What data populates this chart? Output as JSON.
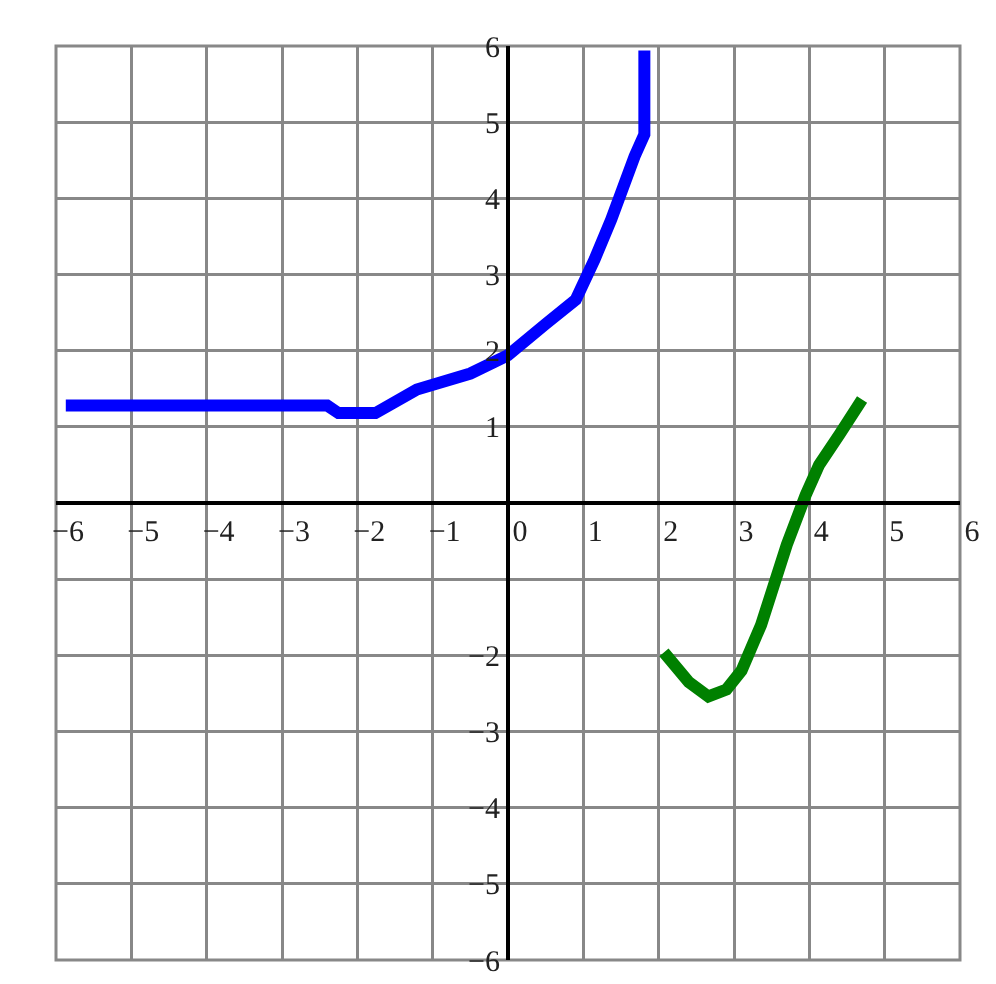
{
  "chart_data": {
    "type": "line",
    "grid": true,
    "marker": "none",
    "line_style": "solid",
    "xlim": [
      -6,
      6
    ],
    "ylim": [
      -6,
      6
    ],
    "xticks": [
      -6,
      -5,
      -4,
      -3,
      -2,
      -1,
      0,
      1,
      2,
      3,
      4,
      5,
      6
    ],
    "yticks": [
      -6,
      -5,
      -4,
      -3,
      -2,
      {
        "value": -1,
        "label": null
      },
      {
        "value": 0,
        "label": null
      },
      1,
      2,
      3,
      4,
      5,
      6
    ],
    "series": [
      {
        "color": "#0000ff",
        "x": [
          -5.87,
          -4,
          -3,
          -2.4,
          -2.25,
          -1.76,
          -1.21,
          -0.5,
          0,
          0.5,
          0.9,
          1.15,
          1.37,
          1.68,
          1.81,
          1.81
        ],
        "values": [
          1.28,
          1.28,
          1.28,
          1.28,
          1.18,
          1.18,
          1.49,
          1.7,
          1.94,
          2.35,
          2.67,
          3.2,
          3.72,
          4.55,
          4.84,
          5.94
        ]
      },
      {
        "color": "#008000",
        "x": [
          2.07,
          2.4,
          2.66,
          2.9,
          3.1,
          3.36,
          3.7,
          3.95,
          4.13,
          4.4,
          4.7
        ],
        "values": [
          -1.96,
          -2.35,
          -2.54,
          -2.45,
          -2.2,
          -1.6,
          -0.55,
          0.1,
          0.5,
          0.9,
          1.36
        ]
      }
    ]
  }
}
